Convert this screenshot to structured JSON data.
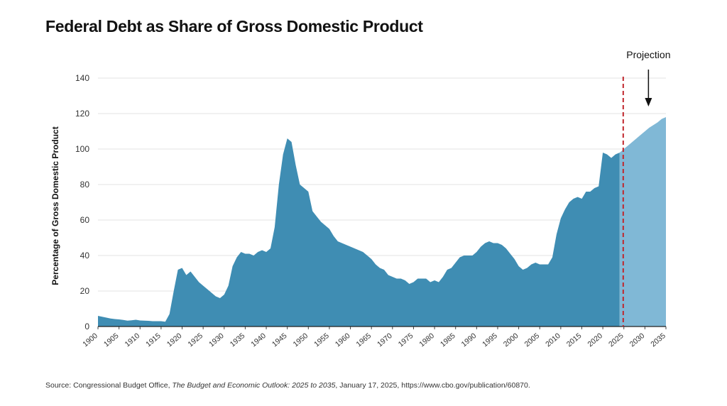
{
  "chart_data": {
    "type": "area",
    "title": "Federal Debt as Share of Gross Domestic Product",
    "ylabel": "Percentage of Gross Domestic Product",
    "xlabel": "",
    "ylim": [
      0,
      140
    ],
    "xlim": [
      1900,
      2035
    ],
    "yticks": [
      0,
      20,
      40,
      60,
      80,
      100,
      120,
      140
    ],
    "xticks": [
      1900,
      1905,
      1910,
      1915,
      1920,
      1925,
      1930,
      1935,
      1940,
      1945,
      1950,
      1955,
      1960,
      1965,
      1970,
      1975,
      1980,
      1985,
      1990,
      1995,
      2000,
      2005,
      2010,
      2015,
      2020,
      2025,
      2030,
      2035
    ],
    "grid": "horizontal",
    "projection_start": 2024,
    "annotation": "Projection",
    "colors": {
      "actual": "#3f8db3",
      "projection": "#80b8d6",
      "divider": "#c0272d"
    },
    "series": [
      {
        "values": [
          [
            1900,
            6
          ],
          [
            1901,
            5.5
          ],
          [
            1902,
            5
          ],
          [
            1903,
            4.5
          ],
          [
            1904,
            4.2
          ],
          [
            1905,
            4
          ],
          [
            1906,
            3.7
          ],
          [
            1907,
            3.3
          ],
          [
            1908,
            3.5
          ],
          [
            1909,
            3.8
          ],
          [
            1910,
            3.4
          ],
          [
            1911,
            3.3
          ],
          [
            1912,
            3.2
          ],
          [
            1913,
            3
          ],
          [
            1914,
            3
          ],
          [
            1915,
            3
          ],
          [
            1916,
            2.7
          ],
          [
            1917,
            7
          ],
          [
            1918,
            20
          ],
          [
            1919,
            32
          ],
          [
            1920,
            33
          ],
          [
            1921,
            29
          ],
          [
            1922,
            31
          ],
          [
            1923,
            28
          ],
          [
            1924,
            25
          ],
          [
            1925,
            23
          ],
          [
            1926,
            21
          ],
          [
            1927,
            19
          ],
          [
            1928,
            17
          ],
          [
            1929,
            16
          ],
          [
            1930,
            18
          ],
          [
            1931,
            23
          ],
          [
            1932,
            34
          ],
          [
            1933,
            39
          ],
          [
            1934,
            42
          ],
          [
            1935,
            41
          ],
          [
            1936,
            41
          ],
          [
            1937,
            40
          ],
          [
            1938,
            42
          ],
          [
            1939,
            43
          ],
          [
            1940,
            42
          ],
          [
            1941,
            44
          ],
          [
            1942,
            56
          ],
          [
            1943,
            80
          ],
          [
            1944,
            97
          ],
          [
            1945,
            106
          ],
          [
            1946,
            104
          ],
          [
            1947,
            91
          ],
          [
            1948,
            80
          ],
          [
            1949,
            78
          ],
          [
            1950,
            76
          ],
          [
            1951,
            65
          ],
          [
            1952,
            62
          ],
          [
            1953,
            59
          ],
          [
            1954,
            57
          ],
          [
            1955,
            55
          ],
          [
            1956,
            51
          ],
          [
            1957,
            48
          ],
          [
            1958,
            47
          ],
          [
            1959,
            46
          ],
          [
            1960,
            45
          ],
          [
            1961,
            44
          ],
          [
            1962,
            43
          ],
          [
            1963,
            42
          ],
          [
            1964,
            40
          ],
          [
            1965,
            38
          ],
          [
            1966,
            35
          ],
          [
            1967,
            33
          ],
          [
            1968,
            32
          ],
          [
            1969,
            29
          ],
          [
            1970,
            28
          ],
          [
            1971,
            27
          ],
          [
            1972,
            27
          ],
          [
            1973,
            26
          ],
          [
            1974,
            24
          ],
          [
            1975,
            25
          ],
          [
            1976,
            27
          ],
          [
            1977,
            27
          ],
          [
            1978,
            27
          ],
          [
            1979,
            25
          ],
          [
            1980,
            26
          ],
          [
            1981,
            25
          ],
          [
            1982,
            28
          ],
          [
            1983,
            32
          ],
          [
            1984,
            33
          ],
          [
            1985,
            36
          ],
          [
            1986,
            39
          ],
          [
            1987,
            40
          ],
          [
            1988,
            40
          ],
          [
            1989,
            40
          ],
          [
            1990,
            42
          ],
          [
            1991,
            45
          ],
          [
            1992,
            47
          ],
          [
            1993,
            48
          ],
          [
            1994,
            47
          ],
          [
            1995,
            47
          ],
          [
            1996,
            46
          ],
          [
            1997,
            44
          ],
          [
            1998,
            41
          ],
          [
            1999,
            38
          ],
          [
            2000,
            34
          ],
          [
            2001,
            32
          ],
          [
            2002,
            33
          ],
          [
            2003,
            35
          ],
          [
            2004,
            36
          ],
          [
            2005,
            35
          ],
          [
            2006,
            35
          ],
          [
            2007,
            35
          ],
          [
            2008,
            39
          ],
          [
            2009,
            52
          ],
          [
            2010,
            61
          ],
          [
            2011,
            66
          ],
          [
            2012,
            70
          ],
          [
            2013,
            72
          ],
          [
            2014,
            73
          ],
          [
            2015,
            72
          ],
          [
            2016,
            76
          ],
          [
            2017,
            76
          ],
          [
            2018,
            78
          ],
          [
            2019,
            79
          ],
          [
            2020,
            98
          ],
          [
            2021,
            97
          ],
          [
            2022,
            95
          ],
          [
            2023,
            97
          ],
          [
            2024,
            98
          ]
        ]
      },
      {
        "values": [
          [
            2024,
            98
          ],
          [
            2025,
            100
          ],
          [
            2026,
            102
          ],
          [
            2027,
            104
          ],
          [
            2028,
            106
          ],
          [
            2029,
            108
          ],
          [
            2030,
            110
          ],
          [
            2031,
            112
          ],
          [
            2032,
            113.5
          ],
          [
            2033,
            115
          ],
          [
            2034,
            117
          ],
          [
            2035,
            118
          ]
        ]
      }
    ]
  },
  "source": {
    "prefix": "Source: Congressional Budget Office, ",
    "italic": "The Budget and Economic Outlook: 2025 to 2035",
    "suffix": ", January 17, 2025, https://www.cbo.gov/publication/60870."
  }
}
